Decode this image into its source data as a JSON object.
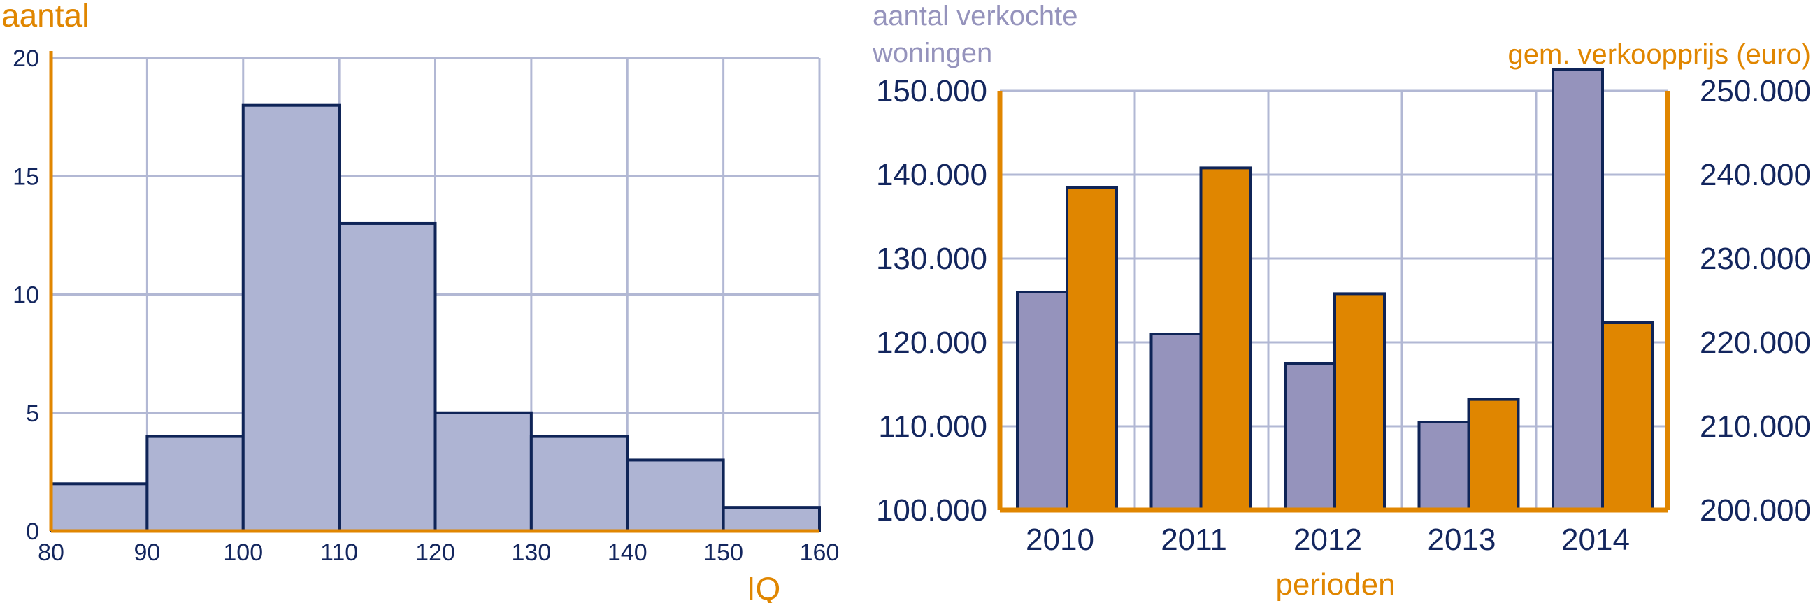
{
  "colors": {
    "orange": "#e08600",
    "navy": "#0f2457",
    "grid": "#b2b8d4",
    "hist_fill": "#aeb4d3",
    "purple": "#9593bc",
    "text_navy": "#13265e"
  },
  "chart_data": [
    {
      "type": "bar",
      "title": "",
      "ylabel": "aantal",
      "xlabel": "IQ",
      "bins": [
        {
          "from": 80,
          "to": 90,
          "value": 2
        },
        {
          "from": 90,
          "to": 100,
          "value": 4
        },
        {
          "from": 100,
          "to": 110,
          "value": 18
        },
        {
          "from": 110,
          "to": 120,
          "value": 13
        },
        {
          "from": 120,
          "to": 130,
          "value": 5
        },
        {
          "from": 130,
          "to": 140,
          "value": 4
        },
        {
          "from": 140,
          "to": 150,
          "value": 3
        },
        {
          "from": 150,
          "to": 160,
          "value": 1
        }
      ],
      "x_ticks": [
        "80",
        "90",
        "100",
        "110",
        "120",
        "130",
        "140",
        "150",
        "160"
      ],
      "y_ticks": [
        "0",
        "5",
        "10",
        "15",
        "20"
      ],
      "xlim": [
        80,
        160
      ],
      "ylim": [
        0,
        20
      ],
      "grid": true
    },
    {
      "type": "bar",
      "title": "",
      "ylabel_left": "aantal verkochte woningen",
      "ylabel_right": "gem. verkoopprijs (euro)",
      "xlabel": "perioden",
      "categories": [
        "2010",
        "2011",
        "2012",
        "2013",
        "2014"
      ],
      "series": [
        {
          "name": "aantal verkochte woningen",
          "axis": "left",
          "values": [
            126000,
            121000,
            117500,
            110500,
            152500
          ]
        },
        {
          "name": "gem. verkoopprijs (euro)",
          "axis": "right",
          "values": [
            238500,
            240800,
            225800,
            213200,
            222400
          ]
        }
      ],
      "y_left_ticks": [
        "100.000",
        "110.000",
        "120.000",
        "130.000",
        "140.000",
        "150.000"
      ],
      "y_right_ticks": [
        "200.000",
        "210.000",
        "220.000",
        "230.000",
        "240.000",
        "250.000"
      ],
      "ylim_left": [
        100000,
        150000
      ],
      "ylim_right": [
        200000,
        250000
      ],
      "grid": true
    }
  ]
}
